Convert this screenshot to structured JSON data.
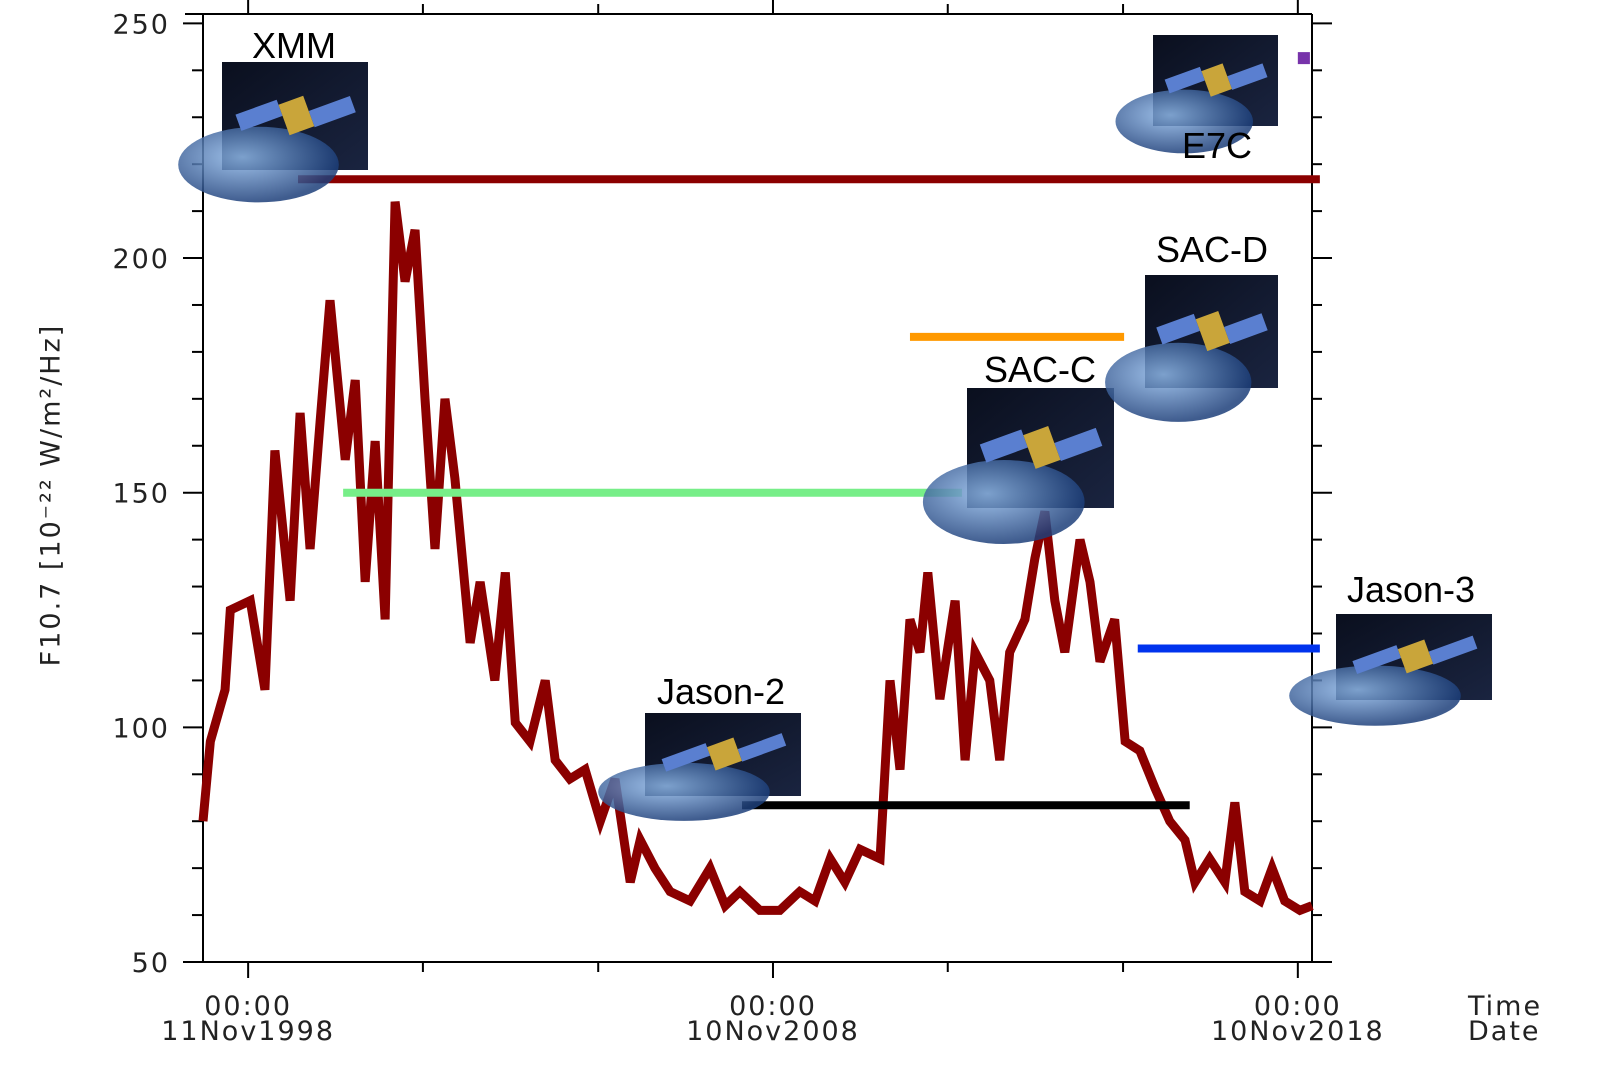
{
  "chart_data": {
    "type": "line",
    "ylabel": "F10.7 [10⁻²² W/m²/Hz]",
    "xlabel_lines": [
      "Time",
      "Date"
    ],
    "color": "#8b0000",
    "xlim": [
      1998.0,
      2019.13
    ],
    "ylim": [
      50,
      252
    ],
    "yticks": [
      50,
      100,
      150,
      200,
      250
    ],
    "yminorticks": [
      60,
      70,
      80,
      90,
      110,
      120,
      130,
      140,
      160,
      170,
      180,
      190,
      210,
      220,
      230,
      240
    ],
    "xticks": [
      {
        "value": 1998.86,
        "label": [
          "00:00",
          "11Nov1998"
        ]
      },
      {
        "value": 2008.86,
        "label": [
          "00:00",
          "10Nov2008"
        ]
      },
      {
        "value": 2018.86,
        "label": [
          "00:00",
          "10Nov2018"
        ]
      }
    ],
    "xminorticks": [
      2002.19,
      2005.53,
      2012.19,
      2015.53
    ],
    "x": [
      1998.0,
      1998.14,
      1998.42,
      1998.52,
      1998.9,
      1999.18,
      1999.37,
      1999.66,
      1999.85,
      2000.04,
      2000.23,
      2000.42,
      2000.71,
      2000.9,
      2001.09,
      2001.28,
      2001.47,
      2001.66,
      2001.85,
      2002.04,
      2002.23,
      2002.42,
      2002.61,
      2002.8,
      2003.09,
      2003.28,
      2003.56,
      2003.76,
      2003.95,
      2004.23,
      2004.52,
      2004.71,
      2004.99,
      2005.28,
      2005.57,
      2005.85,
      2006.14,
      2006.33,
      2006.61,
      2006.9,
      2007.28,
      2007.66,
      2007.95,
      2008.23,
      2008.61,
      2008.99,
      2009.37,
      2009.66,
      2009.95,
      2010.23,
      2010.52,
      2010.9,
      2011.09,
      2011.28,
      2011.47,
      2011.66,
      2011.81,
      2012.04,
      2012.33,
      2012.52,
      2012.71,
      2012.99,
      2013.18,
      2013.37,
      2013.66,
      2013.85,
      2014.04,
      2014.23,
      2014.42,
      2014.71,
      2014.9,
      2015.09,
      2015.37,
      2015.57,
      2015.85,
      2016.14,
      2016.42,
      2016.71,
      2016.9,
      2017.18,
      2017.47,
      2017.66,
      2017.85,
      2018.14,
      2018.37,
      2018.61,
      2018.9,
      2019.13
    ],
    "values": [
      80,
      97,
      108,
      125,
      127,
      108,
      159,
      127,
      167,
      138,
      165,
      191,
      157,
      174,
      131,
      161,
      123,
      212,
      195,
      206,
      170,
      138,
      170,
      153,
      118,
      131,
      110,
      133,
      101,
      97,
      110,
      93,
      89,
      91,
      80,
      89,
      67,
      76,
      70,
      65,
      63,
      70,
      62,
      65,
      61,
      61,
      65,
      63,
      72,
      67,
      74,
      72,
      110,
      91,
      123,
      116,
      133,
      106,
      127,
      93,
      116,
      110,
      93,
      116,
      123,
      136,
      146,
      127,
      116,
      140,
      131,
      114,
      123,
      97,
      95,
      87,
      80,
      76,
      67,
      72,
      67,
      84,
      65,
      63,
      70,
      63,
      61,
      62
    ],
    "missions": [
      {
        "name": "XMM",
        "color": "#8b0000",
        "start": 1999.81,
        "end": 2019.28,
        "level": 216.8
      },
      {
        "name": "SAC-C",
        "color": "#77ee88",
        "start": 2000.67,
        "end": 2012.46,
        "level": 150
      },
      {
        "name": "SAC-D",
        "color": "#ff9900",
        "start": 2011.47,
        "end": 2015.55,
        "level": 183.2
      },
      {
        "name": "Jason-2",
        "color": "#000000",
        "start": 2008.27,
        "end": 2016.8,
        "level": 83.4
      },
      {
        "name": "Jason-3",
        "color": "#0033ee",
        "start": 2015.81,
        "end": 2019.28,
        "level": 116.8
      },
      {
        "name": "E7C",
        "color": "#7733aa",
        "start": 2018.86,
        "end": 2019.09,
        "level": 242.6
      }
    ]
  }
}
